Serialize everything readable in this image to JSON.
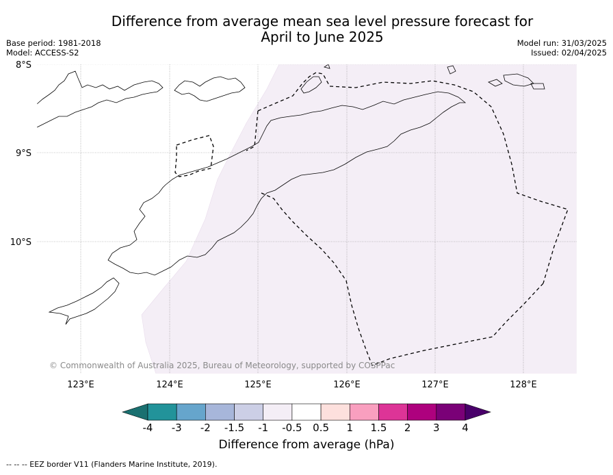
{
  "title_line1": "Difference from average mean sea level pressure forecast for",
  "title_line2": "April to June 2025",
  "meta_left": {
    "base_period": "Base period: 1981-2018",
    "model": "Model: ACCESS-S2"
  },
  "meta_right": {
    "model_run": "Model run: 31/03/2025",
    "issued": "Issued: 02/04/2025"
  },
  "map": {
    "lat_labels": [
      "8°S",
      "9°S",
      "10°S"
    ],
    "lon_labels": [
      "123°E",
      "124°E",
      "125°E",
      "126°E",
      "127°E",
      "128°E"
    ],
    "copyright": "© Commonwealth of Australia 2025, Bureau of Meteorology, supported by COSPPac",
    "shaded_category": "-1 to -0.5",
    "shaded_color": "#f4eef6"
  },
  "colorbar": {
    "title": "Difference from average (hPa)",
    "tick_labels": [
      "-4",
      "-3",
      "-2",
      "-1.5",
      "-1",
      "-0.5",
      "0.5",
      "1",
      "1.5",
      "2",
      "3",
      "4"
    ],
    "colors": [
      "#1a7070",
      "#22939a",
      "#66a5cc",
      "#a7b6da",
      "#cccfe6",
      "#f4eef6",
      "#ffffff",
      "#fde0dd",
      "#f99fbf",
      "#dd3497",
      "#ae017e",
      "#7a0177",
      "#49006a"
    ]
  },
  "footer": "--  --  -- EEZ border V11 (Flanders Marine Institute, 2019)."
}
